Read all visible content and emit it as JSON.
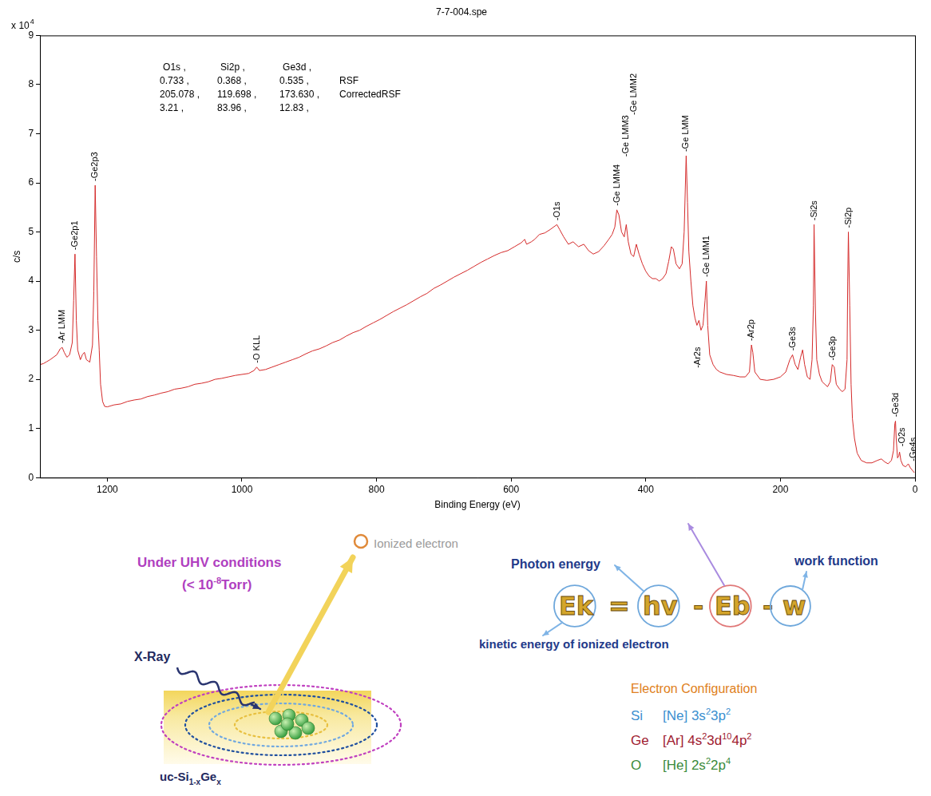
{
  "chart_data": {
    "type": "line",
    "title": "7-7-004.spe",
    "x_label": "Binding Energy (eV)",
    "y_label": "c/s",
    "y_multiplier": {
      "base": "x 10",
      "exponent": "4"
    },
    "color": "#d42a2a",
    "marker": "none",
    "line_style": "solid",
    "grid": false,
    "xlim": [
      1300,
      0
    ],
    "xticks": [
      1200,
      1000,
      800,
      600,
      400,
      200,
      0
    ],
    "ylim": [
      0,
      9
    ],
    "yticks": [
      0,
      1,
      2,
      3,
      4,
      5,
      6,
      7,
      8,
      9
    ],
    "x": [
      1300,
      1295,
      1290,
      1285,
      1280,
      1275,
      1270,
      1267,
      1264,
      1260,
      1256,
      1252,
      1250,
      1248,
      1246,
      1244,
      1240,
      1237,
      1234,
      1231,
      1226,
      1222,
      1220,
      1218,
      1216,
      1214,
      1212,
      1210,
      1207,
      1204,
      1200,
      1190,
      1180,
      1170,
      1160,
      1150,
      1140,
      1130,
      1120,
      1110,
      1100,
      1090,
      1080,
      1070,
      1060,
      1050,
      1040,
      1030,
      1020,
      1010,
      1000,
      990,
      982,
      978,
      974,
      965,
      955,
      945,
      935,
      925,
      915,
      905,
      895,
      885,
      875,
      865,
      855,
      845,
      835,
      825,
      815,
      805,
      795,
      785,
      775,
      765,
      755,
      745,
      735,
      725,
      715,
      705,
      695,
      685,
      675,
      665,
      655,
      645,
      635,
      625,
      615,
      605,
      595,
      585,
      580,
      577,
      570,
      565,
      558,
      550,
      542,
      535,
      532,
      528,
      522,
      515,
      508,
      500,
      492,
      485,
      478,
      470,
      462,
      455,
      450,
      446,
      443,
      440,
      436,
      432,
      429,
      426,
      422,
      418,
      414,
      410,
      405,
      400,
      395,
      390,
      385,
      380,
      375,
      370,
      366,
      362,
      359,
      355,
      350,
      346,
      343,
      340,
      338,
      336,
      333,
      330,
      327,
      324,
      321,
      318,
      315,
      312,
      310,
      308,
      305,
      300,
      295,
      290,
      280,
      270,
      260,
      252,
      246,
      243,
      241,
      238,
      230,
      220,
      210,
      200,
      192,
      186,
      182,
      178,
      174,
      170,
      167,
      164,
      160,
      156,
      153,
      151,
      150,
      148,
      146,
      142,
      138,
      134,
      130,
      126,
      123,
      120,
      117,
      112,
      108,
      104,
      101,
      100,
      99,
      97,
      95,
      93,
      90,
      86,
      80,
      72,
      64,
      56,
      50,
      45,
      40,
      35,
      32,
      30,
      29,
      28,
      26,
      24,
      23,
      21,
      18,
      14,
      10,
      7,
      4,
      1
    ],
    "values": [
      2.3,
      2.32,
      2.36,
      2.4,
      2.45,
      2.5,
      2.62,
      2.65,
      2.55,
      2.45,
      2.5,
      2.75,
      3.6,
      4.55,
      3.2,
      2.6,
      2.4,
      2.5,
      2.55,
      2.4,
      2.35,
      2.7,
      3.8,
      5.95,
      4.5,
      3.2,
      2.6,
      1.9,
      1.55,
      1.45,
      1.44,
      1.48,
      1.5,
      1.55,
      1.58,
      1.6,
      1.65,
      1.68,
      1.72,
      1.75,
      1.8,
      1.82,
      1.85,
      1.9,
      1.92,
      1.95,
      2.0,
      2.02,
      2.05,
      2.08,
      2.1,
      2.12,
      2.18,
      2.25,
      2.18,
      2.2,
      2.25,
      2.3,
      2.35,
      2.4,
      2.45,
      2.52,
      2.58,
      2.62,
      2.68,
      2.75,
      2.8,
      2.88,
      2.95,
      3.0,
      3.08,
      3.15,
      3.22,
      3.3,
      3.38,
      3.45,
      3.52,
      3.6,
      3.68,
      3.75,
      3.85,
      3.92,
      4.0,
      4.08,
      4.15,
      4.22,
      4.3,
      4.38,
      4.45,
      4.52,
      4.58,
      4.62,
      4.7,
      4.78,
      4.85,
      4.75,
      4.8,
      4.85,
      4.95,
      4.98,
      5.05,
      5.12,
      5.15,
      5.05,
      4.9,
      4.75,
      4.8,
      4.7,
      4.75,
      4.62,
      4.55,
      4.6,
      4.72,
      4.85,
      4.95,
      5.1,
      5.45,
      5.35,
      5.0,
      4.9,
      5.15,
      4.8,
      4.55,
      4.5,
      4.75,
      4.55,
      4.35,
      4.2,
      4.1,
      4.05,
      4.05,
      4.0,
      4.05,
      4.15,
      4.4,
      4.7,
      4.65,
      4.35,
      4.25,
      4.35,
      5.0,
      6.55,
      5.6,
      4.6,
      4.0,
      3.5,
      3.25,
      3.1,
      3.2,
      3.0,
      3.1,
      3.6,
      4.0,
      3.1,
      2.5,
      2.3,
      2.2,
      2.15,
      2.1,
      2.08,
      2.05,
      2.05,
      2.15,
      2.7,
      2.55,
      2.15,
      2.0,
      1.98,
      2.0,
      2.05,
      2.15,
      2.4,
      2.5,
      2.3,
      2.2,
      2.45,
      2.6,
      2.3,
      2.05,
      2.0,
      2.4,
      3.5,
      5.15,
      3.4,
      2.4,
      2.1,
      1.95,
      1.9,
      1.85,
      1.95,
      2.3,
      2.25,
      1.9,
      1.8,
      1.75,
      1.8,
      2.4,
      4.0,
      5.0,
      3.5,
      1.9,
      1.2,
      0.8,
      0.5,
      0.35,
      0.3,
      0.3,
      0.35,
      0.38,
      0.32,
      0.28,
      0.35,
      0.55,
      1.1,
      1.15,
      0.8,
      0.4,
      0.45,
      0.52,
      0.35,
      0.25,
      0.22,
      0.28,
      0.2,
      0.15,
      0.1
    ],
    "peak_labels": [
      {
        "text": "-Ar LMM",
        "x": 1267,
        "y": 2.7
      },
      {
        "text": "-Ge2p1",
        "x": 1248,
        "y": 4.6
      },
      {
        "text": "-Ge2p3",
        "x": 1218,
        "y": 6.0
      },
      {
        "text": "-O KLL",
        "x": 978,
        "y": 2.3
      },
      {
        "text": "-O1s",
        "x": 532,
        "y": 5.2
      },
      {
        "text": "-Ge LMM4",
        "x": 443,
        "y": 5.5
      },
      {
        "text": "-Ge LMM3",
        "x": 430,
        "y": 6.5
      },
      {
        "text": "-Ge LMM2",
        "x": 417,
        "y": 7.35
      },
      {
        "text": "-Ge LMM",
        "x": 340,
        "y": 6.6
      },
      {
        "text": "-Ar2s",
        "x": 323,
        "y": 2.2
      },
      {
        "text": "-Ge LMM1",
        "x": 310,
        "y": 4.05
      },
      {
        "text": "-Ar2p",
        "x": 243,
        "y": 2.75
      },
      {
        "text": "-Ge3s",
        "x": 182,
        "y": 2.55
      },
      {
        "text": "-Si2s",
        "x": 150,
        "y": 5.2
      },
      {
        "text": "-Ge3p",
        "x": 122,
        "y": 2.35
      },
      {
        "text": "-Si2p",
        "x": 99,
        "y": 5.05
      },
      {
        "text": "-Ge3d",
        "x": 29,
        "y": 1.2
      },
      {
        "text": "-O2s",
        "x": 19,
        "y": 0.6
      },
      {
        "text": "-Ge4s",
        "x": 3,
        "y": 0.3
      }
    ],
    "rsf_table": {
      "header": [
        "O1s ,",
        "Si2p ,",
        "Ge3d ,"
      ],
      "rows": [
        {
          "cells": [
            "0.733 ,",
            "0.368 ,",
            "0.535 ,"
          ],
          "label": "RSF"
        },
        {
          "cells": [
            "205.078 ,",
            "119.698 ,",
            "173.630 ,"
          ],
          "label": "CorrectedRSF"
        },
        {
          "cells": [
            "3.21 ,",
            "83.96 ,",
            "12.83 ,"
          ]
        }
      ]
    }
  },
  "diagram": {
    "uhv": {
      "text": "Under UHV conditions",
      "pressure": [
        {
          "text": "(< 10"
        },
        {
          "text": "-8",
          "sup": true
        },
        {
          "text": "Torr)"
        }
      ]
    },
    "ionized_electron": "Ionized electron",
    "xray": "X-Ray",
    "photon_energy": "Photon energy",
    "equation": [
      "Ek",
      "=",
      "hv",
      "-",
      "Eb",
      "-",
      "w"
    ],
    "work_function": "work function",
    "kinetic_energy": "kinetic energy of ionized electron",
    "sample": [
      {
        "text": "uc-Si"
      },
      {
        "text": "1-x",
        "sub": true
      },
      {
        "text": "Ge"
      },
      {
        "text": "x",
        "sub": true
      }
    ],
    "configuration": {
      "title": "Electron Configuration",
      "elements": [
        {
          "symbol": "Si",
          "core": "[Ne]",
          "orbitals": [
            [
              "3s",
              "2"
            ],
            [
              "3p",
              "2"
            ]
          ]
        },
        {
          "symbol": "Ge",
          "core": "[Ar]",
          "orbitals": [
            [
              "4s",
              "2"
            ],
            [
              "3d",
              "10"
            ],
            [
              "4p",
              "2"
            ]
          ]
        },
        {
          "symbol": "O",
          "core": "[He]",
          "orbitals": [
            [
              "2s",
              "2"
            ],
            [
              "2p",
              "4"
            ]
          ]
        }
      ]
    }
  }
}
